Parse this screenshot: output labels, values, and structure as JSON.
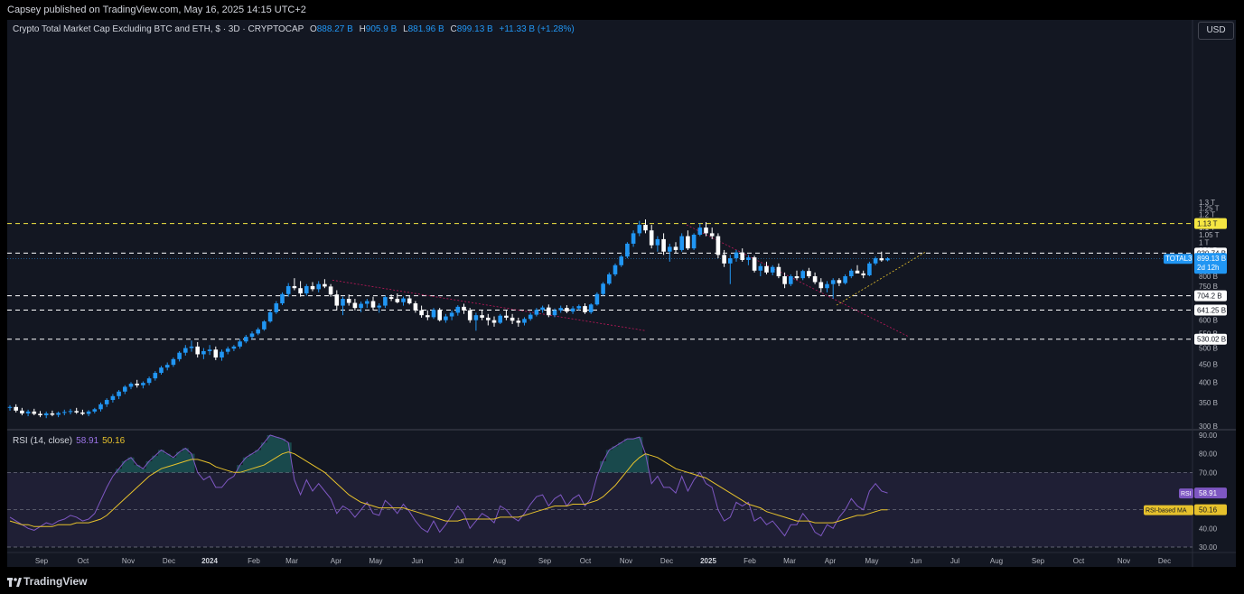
{
  "header": {
    "publisher": "Capsey published on TradingView.com, May 16, 2025 14:15 UTC+2"
  },
  "legend": {
    "title": "Crypto Total Market Cap Excluding BTC and ETH, $ · 3D · CRYPTOCAP",
    "o_label": "O",
    "o": "888.27 B",
    "h_label": "H",
    "h": "905.9 B",
    "l_label": "L",
    "l": "881.96 B",
    "c_label": "C",
    "c": "899.13 B",
    "chg": "+11.33 B (+1.28%)"
  },
  "currency_button": "USD",
  "rsi_legend": {
    "title": "RSI (14, close)",
    "rsi": "58.91",
    "ma": "50.16"
  },
  "footer": {
    "brand": "TradingView"
  },
  "colors": {
    "up": "#2196f3",
    "down": "#ffffff",
    "background": "#131722",
    "rsi_line": "#7e57c2",
    "rsi_ma": "#e6c12c",
    "level_yellow": "#f5e642",
    "level_white": "#ffffff"
  },
  "chart_data": {
    "type": "candlestick",
    "price_axis_ticks": [
      "1.3 T",
      "1.25 T",
      "1.2 T",
      "1.15 T",
      "1.1 T",
      "1.05 T",
      "1 T",
      "950 B",
      "850 B",
      "800 B",
      "750 B",
      "650 B",
      "600 B",
      "550 B",
      "500 B",
      "450 B",
      "400 B",
      "350 B",
      "300 B"
    ],
    "time_axis_ticks": [
      "Sep",
      "Oct",
      "Nov",
      "Dec",
      "2024",
      "Feb",
      "Mar",
      "Apr",
      "May",
      "Jun",
      "Jul",
      "Aug",
      "Sep",
      "Oct",
      "Nov",
      "Dec",
      "2025",
      "Feb",
      "Mar",
      "Apr",
      "May",
      "Jun",
      "Jul",
      "Aug",
      "Sep",
      "Oct",
      "Nov",
      "Dec"
    ],
    "horizontal_levels": [
      {
        "value": 1130,
        "label": "1.13 T",
        "style": "yellow-dashed"
      },
      {
        "value": 930.74,
        "label": "930.74 B",
        "style": "white-dashed"
      },
      {
        "value": 704.2,
        "label": "704.2 B",
        "style": "white-dashed"
      },
      {
        "value": 641.25,
        "label": "641.25 B",
        "style": "white-dashed"
      },
      {
        "value": 530.02,
        "label": "530.02 B",
        "style": "white-dashed"
      }
    ],
    "last_price": {
      "symbol": "TOTAL3",
      "value": "899.13 B",
      "countdown": "2d 12h"
    },
    "candles": [
      [
        0,
        338,
        344,
        332,
        340
      ],
      [
        1,
        340,
        346,
        328,
        332
      ],
      [
        2,
        332,
        338,
        322,
        326
      ],
      [
        3,
        326,
        334,
        320,
        330
      ],
      [
        4,
        330,
        336,
        322,
        325
      ],
      [
        5,
        325,
        331,
        318,
        322
      ],
      [
        6,
        322,
        330,
        316,
        326
      ],
      [
        7,
        326,
        332,
        320,
        323
      ],
      [
        8,
        323,
        330,
        318,
        327
      ],
      [
        9,
        327,
        334,
        322,
        329
      ],
      [
        10,
        329,
        336,
        324,
        331
      ],
      [
        11,
        331,
        338,
        325,
        328
      ],
      [
        12,
        328,
        334,
        322,
        325
      ],
      [
        13,
        325,
        333,
        320,
        330
      ],
      [
        14,
        330,
        338,
        326,
        335
      ],
      [
        15,
        335,
        350,
        330,
        346
      ],
      [
        16,
        346,
        360,
        340,
        356
      ],
      [
        17,
        356,
        370,
        350,
        365
      ],
      [
        18,
        365,
        380,
        358,
        376
      ],
      [
        19,
        376,
        392,
        370,
        388
      ],
      [
        20,
        388,
        400,
        382,
        396
      ],
      [
        21,
        396,
        406,
        386,
        392
      ],
      [
        22,
        392,
        402,
        384,
        398
      ],
      [
        23,
        398,
        415,
        392,
        410
      ],
      [
        24,
        410,
        430,
        404,
        425
      ],
      [
        25,
        425,
        445,
        420,
        440
      ],
      [
        26,
        440,
        455,
        432,
        448
      ],
      [
        27,
        448,
        470,
        442,
        465
      ],
      [
        28,
        465,
        490,
        458,
        485
      ],
      [
        29,
        485,
        510,
        476,
        500
      ],
      [
        30,
        500,
        525,
        488,
        505
      ],
      [
        31,
        505,
        520,
        470,
        480
      ],
      [
        32,
        480,
        500,
        465,
        490
      ],
      [
        33,
        490,
        510,
        478,
        495
      ],
      [
        34,
        495,
        505,
        462,
        470
      ],
      [
        35,
        470,
        495,
        460,
        488
      ],
      [
        36,
        488,
        505,
        480,
        498
      ],
      [
        37,
        498,
        510,
        490,
        505
      ],
      [
        38,
        505,
        530,
        498,
        522
      ],
      [
        39,
        522,
        545,
        516,
        538
      ],
      [
        40,
        538,
        558,
        530,
        550
      ],
      [
        41,
        550,
        572,
        544,
        565
      ],
      [
        42,
        565,
        600,
        560,
        595
      ],
      [
        43,
        595,
        640,
        590,
        632
      ],
      [
        44,
        632,
        680,
        625,
        670
      ],
      [
        45,
        670,
        720,
        662,
        712
      ],
      [
        46,
        712,
        765,
        700,
        750
      ],
      [
        47,
        750,
        790,
        730,
        740
      ],
      [
        48,
        740,
        775,
        700,
        715
      ],
      [
        49,
        715,
        760,
        705,
        750
      ],
      [
        50,
        750,
        770,
        725,
        735
      ],
      [
        51,
        735,
        775,
        720,
        760
      ],
      [
        52,
        760,
        785,
        740,
        748
      ],
      [
        53,
        748,
        760,
        700,
        710
      ],
      [
        54,
        710,
        730,
        640,
        660
      ],
      [
        55,
        660,
        700,
        620,
        690
      ],
      [
        56,
        690,
        710,
        660,
        672
      ],
      [
        57,
        672,
        690,
        640,
        650
      ],
      [
        58,
        650,
        678,
        632,
        668
      ],
      [
        59,
        668,
        690,
        650,
        680
      ],
      [
        60,
        680,
        700,
        640,
        652
      ],
      [
        61,
        652,
        670,
        630,
        660
      ],
      [
        62,
        660,
        705,
        650,
        698
      ],
      [
        63,
        698,
        710,
        680,
        690
      ],
      [
        64,
        690,
        715,
        670,
        675
      ],
      [
        65,
        675,
        700,
        660,
        692
      ],
      [
        66,
        692,
        705,
        665,
        670
      ],
      [
        67,
        670,
        680,
        630,
        640
      ],
      [
        68,
        640,
        660,
        610,
        620
      ],
      [
        69,
        620,
        640,
        600,
        612
      ],
      [
        70,
        612,
        650,
        605,
        642
      ],
      [
        71,
        642,
        650,
        595,
        600
      ],
      [
        72,
        600,
        625,
        590,
        615
      ],
      [
        73,
        615,
        640,
        600,
        630
      ],
      [
        74,
        630,
        662,
        618,
        655
      ],
      [
        75,
        655,
        668,
        625,
        640
      ],
      [
        76,
        640,
        650,
        590,
        600
      ],
      [
        77,
        600,
        630,
        560,
        620
      ],
      [
        78,
        620,
        640,
        600,
        610
      ],
      [
        79,
        610,
        625,
        580,
        600
      ],
      [
        80,
        600,
        615,
        575,
        590
      ],
      [
        81,
        590,
        625,
        585,
        618
      ],
      [
        82,
        618,
        640,
        600,
        610
      ],
      [
        83,
        610,
        625,
        585,
        598
      ],
      [
        84,
        598,
        610,
        575,
        590
      ],
      [
        85,
        590,
        612,
        580,
        605
      ],
      [
        86,
        605,
        630,
        598,
        622
      ],
      [
        87,
        622,
        650,
        615,
        642
      ],
      [
        88,
        642,
        660,
        630,
        652
      ],
      [
        89,
        652,
        665,
        612,
        620
      ],
      [
        90,
        620,
        648,
        612,
        640
      ],
      [
        91,
        640,
        660,
        630,
        650
      ],
      [
        92,
        650,
        662,
        628,
        635
      ],
      [
        93,
        635,
        658,
        625,
        648
      ],
      [
        94,
        648,
        665,
        640,
        658
      ],
      [
        95,
        658,
        670,
        625,
        632
      ],
      [
        96,
        632,
        670,
        625,
        665
      ],
      [
        97,
        665,
        720,
        660,
        712
      ],
      [
        98,
        712,
        770,
        705,
        762
      ],
      [
        99,
        762,
        820,
        755,
        810
      ],
      [
        100,
        810,
        870,
        800,
        860
      ],
      [
        101,
        860,
        920,
        850,
        910
      ],
      [
        102,
        910,
        1000,
        900,
        990
      ],
      [
        103,
        990,
        1080,
        970,
        1060
      ],
      [
        104,
        1060,
        1150,
        1040,
        1120
      ],
      [
        105,
        1120,
        1160,
        1060,
        1080
      ],
      [
        106,
        1080,
        1120,
        960,
        980
      ],
      [
        107,
        980,
        1040,
        940,
        1020
      ],
      [
        108,
        1020,
        1060,
        920,
        940
      ],
      [
        109,
        940,
        990,
        880,
        970
      ],
      [
        110,
        970,
        1000,
        930,
        950
      ],
      [
        111,
        950,
        1060,
        940,
        1040
      ],
      [
        112,
        1040,
        1080,
        950,
        960
      ],
      [
        113,
        960,
        1060,
        950,
        1050
      ],
      [
        114,
        1050,
        1130,
        1040,
        1100
      ],
      [
        115,
        1100,
        1140,
        1040,
        1060
      ],
      [
        116,
        1060,
        1100,
        1020,
        1040
      ],
      [
        117,
        1040,
        1060,
        900,
        920
      ],
      [
        118,
        920,
        950,
        850,
        870
      ],
      [
        119,
        870,
        920,
        760,
        900
      ],
      [
        120,
        900,
        950,
        880,
        935
      ],
      [
        121,
        935,
        960,
        880,
        890
      ],
      [
        122,
        890,
        920,
        860,
        905
      ],
      [
        123,
        905,
        915,
        820,
        830
      ],
      [
        124,
        830,
        870,
        800,
        855
      ],
      [
        125,
        855,
        880,
        810,
        820
      ],
      [
        126,
        820,
        860,
        805,
        850
      ],
      [
        127,
        850,
        870,
        790,
        800
      ],
      [
        128,
        800,
        820,
        740,
        760
      ],
      [
        129,
        760,
        810,
        750,
        800
      ],
      [
        130,
        800,
        830,
        780,
        790
      ],
      [
        131,
        790,
        835,
        780,
        828
      ],
      [
        132,
        828,
        845,
        790,
        800
      ],
      [
        133,
        800,
        820,
        760,
        770
      ],
      [
        134,
        770,
        790,
        720,
        740
      ],
      [
        135,
        740,
        775,
        720,
        760
      ],
      [
        136,
        760,
        790,
        690,
        780
      ],
      [
        137,
        780,
        790,
        750,
        765
      ],
      [
        138,
        765,
        810,
        758,
        800
      ],
      [
        139,
        800,
        840,
        790,
        830
      ],
      [
        140,
        830,
        860,
        820,
        815
      ],
      [
        141,
        815,
        830,
        790,
        805
      ],
      [
        142,
        805,
        880,
        800,
        870
      ],
      [
        143,
        870,
        910,
        860,
        900
      ],
      [
        144,
        900,
        940,
        880,
        888
      ],
      [
        145,
        888,
        906,
        882,
        899
      ]
    ],
    "rsi": {
      "name": "RSI",
      "ma_name": "RSI-based MA",
      "ylim": [
        27,
        92
      ],
      "ticks": [
        "90.00",
        "80.00",
        "70.00",
        "60.00",
        "50.00",
        "40.00",
        "30.00"
      ],
      "bands": {
        "upper": 70,
        "middle": 50,
        "lower": 30
      },
      "values": [
        46,
        44,
        42,
        40,
        39,
        41,
        43,
        42,
        44,
        45,
        47,
        46,
        44,
        45,
        48,
        55,
        62,
        68,
        72,
        76,
        78,
        74,
        72,
        76,
        79,
        82,
        80,
        78,
        81,
        83,
        80,
        70,
        66,
        68,
        62,
        62,
        66,
        68,
        74,
        78,
        80,
        82,
        86,
        90,
        89,
        88,
        86,
        66,
        58,
        66,
        60,
        64,
        60,
        56,
        48,
        52,
        50,
        46,
        50,
        54,
        48,
        47,
        55,
        52,
        48,
        53,
        49,
        44,
        40,
        38,
        44,
        38,
        42,
        47,
        52,
        48,
        40,
        44,
        48,
        46,
        43,
        52,
        50,
        46,
        44,
        48,
        53,
        57,
        58,
        52,
        56,
        58,
        52,
        56,
        58,
        52,
        56,
        68,
        76,
        82,
        84,
        86,
        88,
        88,
        89,
        80,
        64,
        68,
        62,
        62,
        59,
        68,
        60,
        66,
        70,
        64,
        62,
        50,
        44,
        46,
        54,
        52,
        54,
        44,
        46,
        42,
        44,
        40,
        36,
        42,
        42,
        48,
        44,
        38,
        36,
        42,
        40,
        46,
        50,
        56,
        52,
        50,
        60,
        64,
        60,
        59
      ],
      "ma_values": [
        44,
        43,
        42,
        42,
        41,
        41,
        41,
        41,
        42,
        42,
        42,
        43,
        43,
        43,
        44,
        45,
        47,
        50,
        53,
        56,
        59,
        62,
        65,
        68,
        70,
        72,
        73,
        74,
        75,
        76,
        77,
        77,
        76,
        75,
        73,
        72,
        71,
        70,
        70,
        71,
        72,
        73,
        74,
        76,
        78,
        80,
        81,
        80,
        78,
        76,
        74,
        72,
        70,
        67,
        64,
        61,
        58,
        56,
        54,
        53,
        52,
        51,
        51,
        51,
        51,
        51,
        50,
        49,
        48,
        47,
        46,
        45,
        44,
        44,
        44,
        45,
        45,
        45,
        45,
        45,
        45,
        46,
        46,
        46,
        46,
        47,
        48,
        49,
        50,
        51,
        52,
        52,
        52,
        53,
        53,
        53,
        54,
        55,
        57,
        60,
        63,
        67,
        71,
        75,
        78,
        80,
        79,
        78,
        76,
        74,
        72,
        71,
        70,
        69,
        68,
        67,
        65,
        63,
        61,
        59,
        57,
        55,
        53,
        52,
        51,
        49,
        48,
        47,
        46,
        45,
        44,
        44,
        44,
        43,
        43,
        43,
        43,
        44,
        45,
        46,
        47,
        47,
        48,
        49,
        50,
        50
      ]
    }
  }
}
